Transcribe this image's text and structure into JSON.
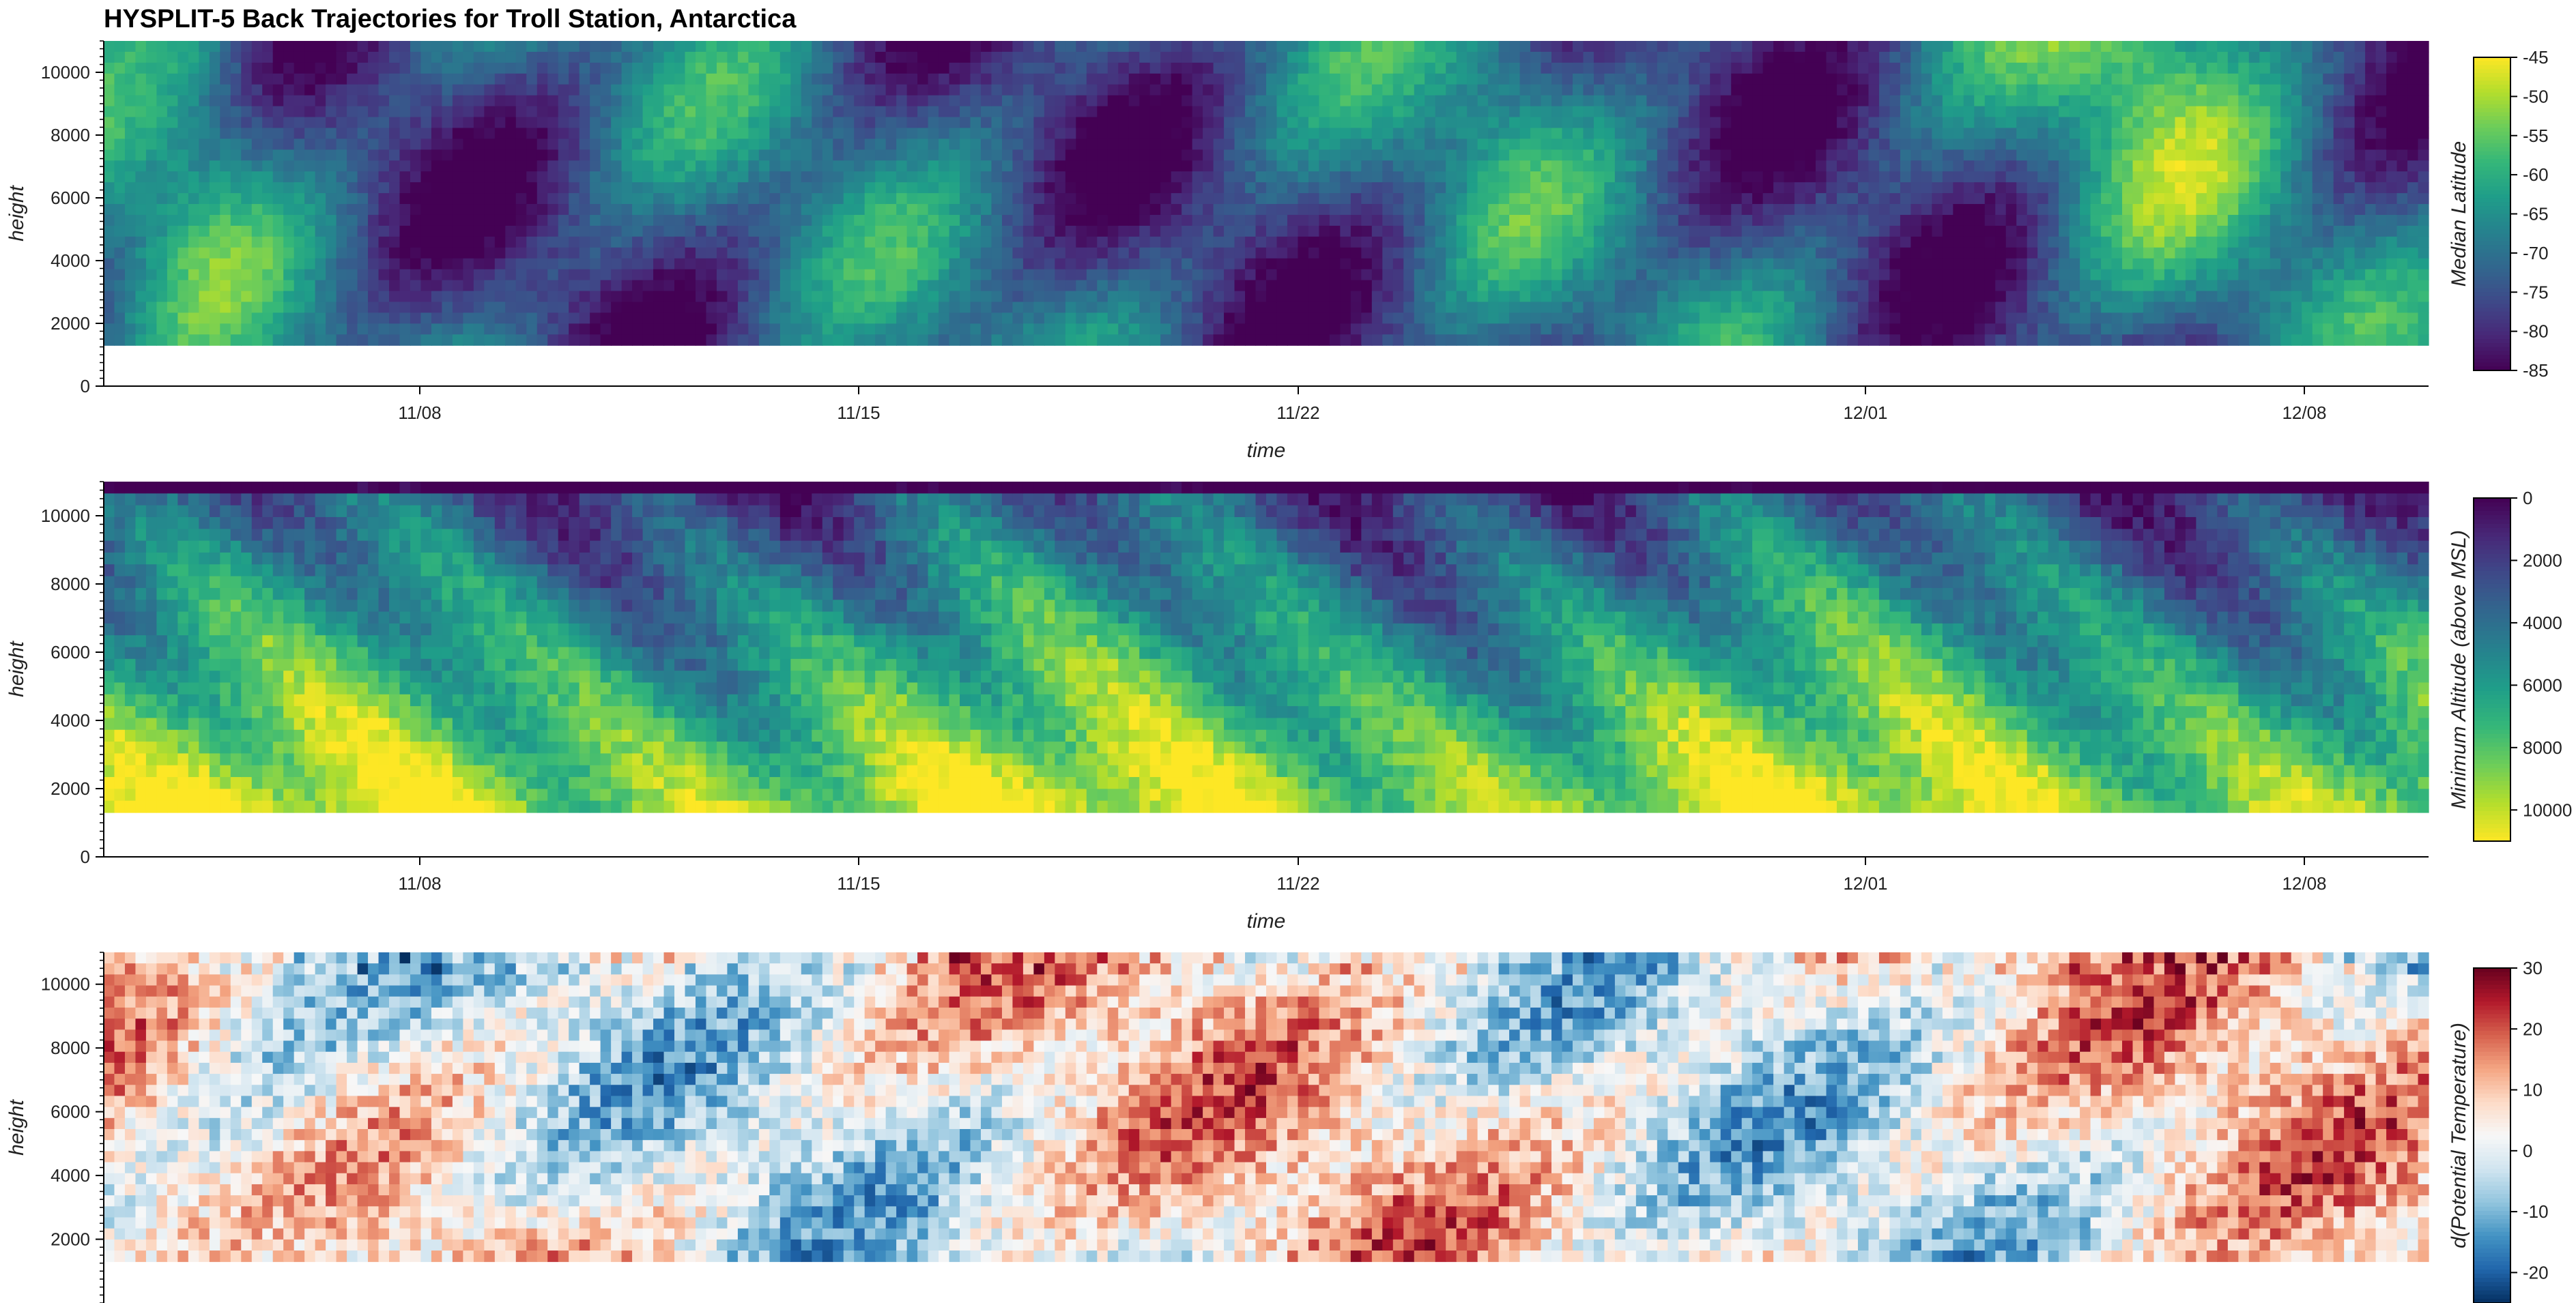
{
  "title": "HYSPLIT-5 Back Trajectories for Troll Station, Antarctica",
  "chart_data": [
    {
      "type": "heatmap",
      "name": "median-latitude",
      "xlabel": "time",
      "ylabel": "height",
      "x_ticks": [
        "11/08",
        "11/15",
        "11/22",
        "12/01",
        "12/08"
      ],
      "y_ticks": [
        0,
        2000,
        4000,
        6000,
        8000,
        10000
      ],
      "ylim": [
        0,
        11000
      ],
      "data_height_range": [
        1300,
        11000
      ],
      "colorbar": {
        "label": "Median Latitude",
        "ticks": [
          -45,
          -50,
          -55,
          -60,
          -65,
          -70,
          -75,
          -80,
          -85
        ],
        "range": [
          -85,
          -45
        ],
        "colormap": "viridis",
        "reversed": false
      }
    },
    {
      "type": "heatmap",
      "name": "minimum-altitude",
      "xlabel": "time",
      "ylabel": "height",
      "x_ticks": [
        "11/08",
        "11/15",
        "11/22",
        "12/01",
        "12/08"
      ],
      "y_ticks": [
        0,
        2000,
        4000,
        6000,
        8000,
        10000
      ],
      "ylim": [
        0,
        11000
      ],
      "data_height_range": [
        1300,
        11000
      ],
      "colorbar": {
        "label": "Minimum Altitude (above MSL)",
        "ticks": [
          10000,
          8000,
          6000,
          4000,
          2000,
          0
        ],
        "range": [
          0,
          11000
        ],
        "colormap": "viridis",
        "reversed": true
      }
    },
    {
      "type": "heatmap",
      "name": "potential-temperature-change",
      "xlabel": "",
      "ylabel": "height",
      "y_ticks": [
        2000,
        4000,
        6000,
        8000,
        10000
      ],
      "ylim": [
        0,
        11000
      ],
      "data_height_range": [
        1300,
        11000
      ],
      "colorbar": {
        "label": "d(Potential Temperature)",
        "ticks": [
          30,
          20,
          10,
          0,
          -10,
          -20
        ],
        "range": [
          -25,
          30
        ],
        "colormap": "RdBu_r",
        "reversed": false
      }
    }
  ]
}
